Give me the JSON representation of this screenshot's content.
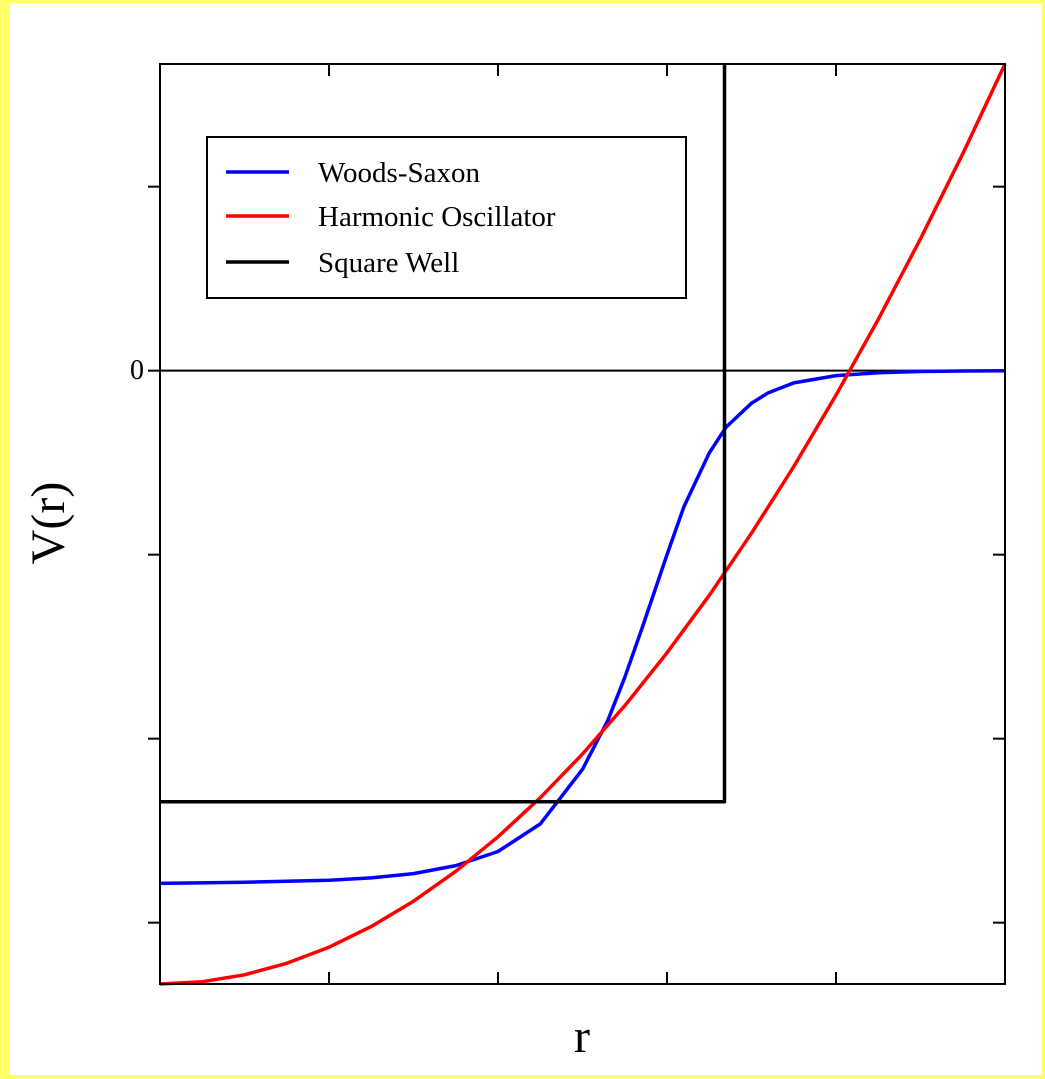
{
  "chart_data": {
    "type": "line",
    "title": "",
    "xlabel": "r",
    "ylabel": "V(r)",
    "y_tick_labels": [
      {
        "value": 0,
        "label": "0"
      }
    ],
    "xlim": [
      0,
      1
    ],
    "ylim": [
      -1,
      0.5
    ],
    "x_ticks": [
      0.2,
      0.4,
      0.6,
      0.8
    ],
    "y_ticks": [
      -0.9,
      -0.6,
      -0.3,
      0.3
    ],
    "legend_position": "top-left",
    "series": [
      {
        "name": "Woods-Saxon",
        "color": "#0000ff",
        "x": [
          0,
          0.1,
          0.2,
          0.25,
          0.3,
          0.35,
          0.4,
          0.45,
          0.5,
          0.53,
          0.55,
          0.57,
          0.6,
          0.62,
          0.65,
          0.67,
          0.7,
          0.72,
          0.75,
          0.8,
          0.85,
          0.9,
          0.95,
          1.0
        ],
        "y": [
          -0.836,
          -0.834,
          -0.831,
          -0.827,
          -0.82,
          -0.807,
          -0.784,
          -0.739,
          -0.65,
          -0.57,
          -0.5,
          -0.422,
          -0.3,
          -0.222,
          -0.134,
          -0.092,
          -0.053,
          -0.036,
          -0.02,
          -0.008,
          -0.0033,
          -0.0013,
          -0.0005,
          -0.0002
        ]
      },
      {
        "name": "Harmonic Oscillator",
        "color": "#ff0000",
        "x": [
          0,
          0.05,
          0.1,
          0.15,
          0.2,
          0.25,
          0.3,
          0.35,
          0.4,
          0.45,
          0.5,
          0.55,
          0.6,
          0.65,
          0.7,
          0.75,
          0.8,
          0.85,
          0.9,
          0.95,
          1.0
        ],
        "y": [
          -1.0,
          -0.9962,
          -0.985,
          -0.9662,
          -0.94,
          -0.9062,
          -0.865,
          -0.8162,
          -0.76,
          -0.6962,
          -0.625,
          -0.5462,
          -0.46,
          -0.3662,
          -0.265,
          -0.1562,
          -0.04,
          0.0838,
          0.215,
          0.3538,
          0.5
        ]
      },
      {
        "name": "Square Well",
        "color": "#000000",
        "x": [
          0,
          0.668,
          0.668
        ],
        "y": [
          -0.703,
          -0.703,
          0.5
        ]
      }
    ]
  }
}
